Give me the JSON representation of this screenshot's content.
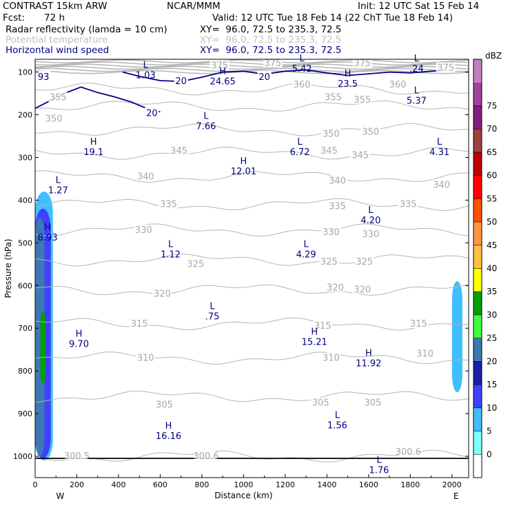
{
  "header": {
    "model": "CONTRAST 15km ARW",
    "org": "NCAR/MMM",
    "init": "Init: 12 UTC Sat 15 Feb 14",
    "fcst_label": "Fcst:",
    "fcst_value": "72 h",
    "valid": "Valid: 12 UTC Tue 18 Feb 14 (22 ChT Tue 18 Feb 14)",
    "fields": [
      {
        "name": "Radar reflectivity (lamda = 10 cm)",
        "xy": "XY=  96.0, 72.5 to 235.3, 72.5",
        "color": "#000000"
      },
      {
        "name": "Potential temperature",
        "xy": "XY=  96.0, 72.5 to 235.3, 72.5",
        "color": "#c0c0c0"
      },
      {
        "name": "Horizontal wind speed",
        "xy": "XY=  96.0, 72.5 to 235.3, 72.5",
        "color": "#000080"
      }
    ]
  },
  "chart_data": {
    "type": "contour",
    "xlabel": "Distance (km)",
    "ylabel": "Pressure (hPa)",
    "xlim": [
      0,
      2080
    ],
    "ylim": [
      1050,
      70
    ],
    "x_ticks": [
      0,
      200,
      400,
      600,
      800,
      1000,
      1200,
      1400,
      1600,
      1800,
      2000
    ],
    "y_ticks": [
      100,
      200,
      300,
      400,
      500,
      600,
      700,
      800,
      900,
      1000
    ],
    "x_end_labels": {
      "left": "W",
      "right": "E"
    },
    "colorbar": {
      "unit": "dBZ",
      "levels": [
        0,
        5,
        10,
        15,
        20,
        25,
        30,
        35,
        40,
        45,
        50,
        55,
        60,
        65,
        70,
        75
      ],
      "colors": [
        "#ffffff",
        "#7fffff",
        "#3fbfff",
        "#4040ff",
        "#1e1ea8",
        "#3c78b4",
        "#3cff3c",
        "#00a000",
        "#ffff00",
        "#ffc040",
        "#ff9640",
        "#ff5000",
        "#ff0000",
        "#c00000",
        "#a04040",
        "#802080",
        "#a040a0",
        "#c080c0"
      ]
    },
    "theta_isentropes": [
      {
        "label": "300",
        "p": 1000
      },
      {
        "label": "305",
        "p": 860
      },
      {
        "label": "310",
        "p": 770
      },
      {
        "label": "315",
        "p": 690
      },
      {
        "label": "320",
        "p": 610
      },
      {
        "label": "325",
        "p": 540
      },
      {
        "label": "330",
        "p": 470
      },
      {
        "label": "335",
        "p": 410
      },
      {
        "label": "340",
        "p": 345
      },
      {
        "label": "345",
        "p": 290
      },
      {
        "label": "350",
        "p": 235
      },
      {
        "label": "355",
        "p": 180
      },
      {
        "label": "360",
        "p": 140
      }
    ],
    "theta_labels": [
      {
        "text": "300.5",
        "x": 200,
        "p": 1000
      },
      {
        "text": "300.6",
        "x": 820,
        "p": 1000
      },
      {
        "text": "300.6",
        "x": 1790,
        "p": 990
      },
      {
        "text": "305",
        "x": 620,
        "p": 880
      },
      {
        "text": "305",
        "x": 1370,
        "p": 875
      },
      {
        "text": "305",
        "x": 1620,
        "p": 875
      },
      {
        "text": "310",
        "x": 530,
        "p": 770
      },
      {
        "text": "310",
        "x": 1420,
        "p": 770
      },
      {
        "text": "310",
        "x": 1870,
        "p": 760
      },
      {
        "text": "315",
        "x": 500,
        "p": 690
      },
      {
        "text": "315",
        "x": 1380,
        "p": 695
      },
      {
        "text": "315",
        "x": 1840,
        "p": 690
      },
      {
        "text": "320",
        "x": 610,
        "p": 620
      },
      {
        "text": "320",
        "x": 1440,
        "p": 605
      },
      {
        "text": "320",
        "x": 1570,
        "p": 610
      },
      {
        "text": "325",
        "x": 770,
        "p": 550
      },
      {
        "text": "325",
        "x": 1410,
        "p": 545
      },
      {
        "text": "325",
        "x": 1580,
        "p": 545
      },
      {
        "text": "330",
        "x": 520,
        "p": 470
      },
      {
        "text": "330",
        "x": 1420,
        "p": 475
      },
      {
        "text": "330",
        "x": 1610,
        "p": 480
      },
      {
        "text": "335",
        "x": 640,
        "p": 410
      },
      {
        "text": "335",
        "x": 1450,
        "p": 415
      },
      {
        "text": "335",
        "x": 1790,
        "p": 410
      },
      {
        "text": "340",
        "x": 530,
        "p": 345
      },
      {
        "text": "340",
        "x": 1450,
        "p": 355
      },
      {
        "text": "340",
        "x": 1950,
        "p": 365
      },
      {
        "text": "345",
        "x": 690,
        "p": 285
      },
      {
        "text": "345",
        "x": 1410,
        "p": 285
      },
      {
        "text": "345",
        "x": 1560,
        "p": 295
      },
      {
        "text": "350",
        "x": 90,
        "p": 210
      },
      {
        "text": "350",
        "x": 1420,
        "p": 245
      },
      {
        "text": "350",
        "x": 1610,
        "p": 240
      },
      {
        "text": "355",
        "x": 110,
        "p": 160
      },
      {
        "text": "355",
        "x": 1430,
        "p": 160
      },
      {
        "text": "355",
        "x": 1570,
        "p": 165
      },
      {
        "text": "360",
        "x": 1280,
        "p": 130
      },
      {
        "text": "360",
        "x": 1740,
        "p": 130
      },
      {
        "text": "375",
        "x": 885,
        "p": 85
      },
      {
        "text": "375",
        "x": 1140,
        "p": 80
      },
      {
        "text": "375",
        "x": 1570,
        "p": 80
      },
      {
        "text": "375",
        "x": 1970,
        "p": 90
      }
    ],
    "extrema": [
      {
        "kind": "L",
        "value": "1.03",
        "x": 530,
        "p": 90
      },
      {
        "kind": "H",
        "value": "24.65",
        "x": 900,
        "p": 105
      },
      {
        "kind": "L",
        "value": "5.42",
        "x": 1280,
        "p": 75
      },
      {
        "kind": "H",
        "value": "23.5",
        "x": 1500,
        "p": 110
      },
      {
        "kind": "L",
        "value": ".24",
        "x": 1830,
        "p": 75
      },
      {
        "kind": "L",
        "value": "5.37",
        "x": 1830,
        "p": 150
      },
      {
        "kind": "L",
        "value": "7.66",
        "x": 820,
        "p": 210
      },
      {
        "kind": "H",
        "value": "19.1",
        "x": 280,
        "p": 270
      },
      {
        "kind": "L",
        "value": "6.72",
        "x": 1270,
        "p": 270
      },
      {
        "kind": "L",
        "value": "4.31",
        "x": 1940,
        "p": 270
      },
      {
        "kind": "H",
        "value": "12.01",
        "x": 1000,
        "p": 315
      },
      {
        "kind": "L",
        "value": "1.27",
        "x": 110,
        "p": 360
      },
      {
        "kind": "L",
        "value": "4.20",
        "x": 1610,
        "p": 430
      },
      {
        "kind": "H",
        "value": "8.93",
        "x": 60,
        "p": 470
      },
      {
        "kind": "L",
        "value": "1.12",
        "x": 650,
        "p": 510
      },
      {
        "kind": "L",
        "value": "4.29",
        "x": 1300,
        "p": 510
      },
      {
        "kind": "L",
        "value": ".75",
        "x": 850,
        "p": 655
      },
      {
        "kind": "H",
        "value": "9.70",
        "x": 210,
        "p": 720
      },
      {
        "kind": "H",
        "value": "15.21",
        "x": 1340,
        "p": 715
      },
      {
        "kind": "H",
        "value": "11.92",
        "x": 1600,
        "p": 765
      },
      {
        "kind": "H",
        "value": "16.16",
        "x": 640,
        "p": 935
      },
      {
        "kind": "L",
        "value": "1.56",
        "x": 1450,
        "p": 910
      },
      {
        "kind": "L",
        "value": "1.76",
        "x": 1650,
        "p": 1015
      }
    ],
    "wind_labels": [
      {
        "text": "20",
        "x": 700,
        "p": 120
      },
      {
        "text": "20",
        "x": 1100,
        "p": 110
      },
      {
        "text": "20",
        "x": 560,
        "p": 195
      },
      {
        "text": "93",
        "x": 40,
        "p": 110
      }
    ],
    "reflectivity": [
      {
        "dbz": 5,
        "region": "west column",
        "x": [
          0,
          85
        ],
        "p": [
          380,
          1010
        ]
      },
      {
        "dbz": 10,
        "region": "west column",
        "x": [
          0,
          75
        ],
        "p": [
          420,
          1005
        ]
      },
      {
        "dbz": 20,
        "region": "west column",
        "x": [
          0,
          45
        ],
        "p": [
          440,
          1000
        ]
      },
      {
        "dbz": 30,
        "region": "west column",
        "x": [
          25,
          50
        ],
        "p": [
          660,
          830
        ]
      },
      {
        "dbz": 5,
        "region": "east column",
        "x": [
          2000,
          2050
        ],
        "p": [
          590,
          850
        ]
      }
    ]
  }
}
